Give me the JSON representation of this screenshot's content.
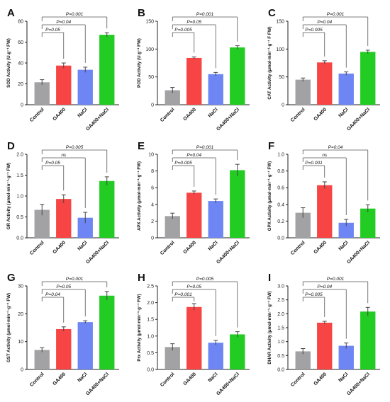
{
  "colors": {
    "Control": "#a2a2a4",
    "GA400": "#f74444",
    "NaCl": "#6e86f4",
    "GA400+NaCl": "#22cc22",
    "errorbar": "#444444",
    "axis": "#222222",
    "sig": "#555555"
  },
  "categories": [
    "Control",
    "GA400",
    "NaCl",
    "GA400+NaCl"
  ],
  "chart_data": [
    {
      "panel": "A",
      "type": "bar",
      "categories": [
        "Control",
        "GA400",
        "NaCl",
        "GA400+NaCl"
      ],
      "values": [
        21.5,
        37.5,
        33.5,
        67
      ],
      "errors": [
        2.5,
        2.5,
        2.5,
        2
      ],
      "ylabel": "SOD Activity (U.g⁻¹ FW)",
      "ylim": [
        0,
        80
      ],
      "yticks": [
        "0",
        "20",
        "40",
        "60",
        "80"
      ],
      "brackets": [
        {
          "to": 1,
          "label": "P=0.05"
        },
        {
          "to": 2,
          "label": "P=0.04"
        },
        {
          "to": 3,
          "label": "P=0.001"
        }
      ]
    },
    {
      "panel": "B",
      "type": "bar",
      "categories": [
        "Control",
        "GA400",
        "NaCl",
        "GA400+NaCl"
      ],
      "values": [
        26,
        84,
        55,
        103
      ],
      "errors": [
        5,
        2,
        3,
        3
      ],
      "ylabel": "POD Activity (U.g⁻¹ FW)",
      "ylim": [
        0,
        150
      ],
      "yticks": [
        "0",
        "50",
        "100",
        "150"
      ],
      "brackets": [
        {
          "to": 1,
          "label": "P=0.005"
        },
        {
          "to": 2,
          "label": "P=0.05"
        },
        {
          "to": 3,
          "label": "P=0.001"
        }
      ]
    },
    {
      "panel": "C",
      "type": "bar",
      "categories": [
        "Control",
        "GA400",
        "NaCl",
        "GA400+NaCl"
      ],
      "values": [
        45,
        76,
        56,
        95
      ],
      "errors": [
        3,
        3,
        3,
        3
      ],
      "ylabel": "CAT Activity (μmol·min⁻¹·g⁻¹ F FW)",
      "ylim": [
        0,
        150
      ],
      "yticks": [
        "0",
        "50",
        "100",
        "150"
      ],
      "brackets": [
        {
          "to": 1,
          "label": "P=0.005"
        },
        {
          "to": 2,
          "label": "P=0.04"
        },
        {
          "to": 3,
          "label": "P=0.001"
        }
      ]
    },
    {
      "panel": "D",
      "type": "bar",
      "categories": [
        "Control",
        "GA400",
        "NaCl",
        "GA400+NaCl"
      ],
      "values": [
        0.67,
        0.93,
        0.48,
        1.36
      ],
      "errors": [
        0.13,
        0.1,
        0.13,
        0.1
      ],
      "ylabel": "GR Activity (μmol·min⁻¹·g⁻¹ FW)",
      "ylim": [
        0,
        2.0
      ],
      "yticks": [
        "0.0",
        "0.5",
        "1.0",
        "1.5",
        "2.0"
      ],
      "brackets": [
        {
          "to": 1,
          "label": "P=0.05"
        },
        {
          "to": 2,
          "label": "ns"
        },
        {
          "to": 3,
          "label": "P=0.005"
        }
      ]
    },
    {
      "panel": "E",
      "type": "bar",
      "categories": [
        "Control",
        "GA400",
        "NaCl",
        "GA400+NaCl"
      ],
      "values": [
        2.6,
        5.4,
        4.4,
        8.1
      ],
      "errors": [
        0.35,
        0.2,
        0.25,
        0.7
      ],
      "ylabel": "APX Activity (μmol·min⁻¹·g⁻¹ FW)",
      "ylim": [
        0,
        10
      ],
      "yticks": [
        "0",
        "2",
        "4",
        "6",
        "8",
        "10"
      ],
      "brackets": [
        {
          "to": 1,
          "label": "P=0.005"
        },
        {
          "to": 2,
          "label": "P=0.04"
        },
        {
          "to": 3,
          "label": "P=0.001"
        }
      ]
    },
    {
      "panel": "F",
      "type": "bar",
      "categories": [
        "Control",
        "GA400",
        "NaCl",
        "GA400+NaCl"
      ],
      "values": [
        0.3,
        0.63,
        0.18,
        0.35
      ],
      "errors": [
        0.06,
        0.04,
        0.04,
        0.045
      ],
      "ylabel": "GPX Activity (μmol·min⁻¹·g⁻¹ FW)",
      "ylim": [
        0,
        1.0
      ],
      "yticks": [
        "0.0",
        "0.2",
        "0.4",
        "0.6",
        "0.8",
        "1.0"
      ],
      "brackets": [
        {
          "to": 1,
          "label": "P=0.001"
        },
        {
          "to": 2,
          "label": "ns"
        },
        {
          "to": 3,
          "label": "P=0.04"
        }
      ]
    },
    {
      "panel": "G",
      "type": "bar",
      "categories": [
        "Control",
        "GA400",
        "NaCl",
        "GA400+NaCl"
      ],
      "values": [
        7,
        14.5,
        17,
        26.5
      ],
      "errors": [
        0.8,
        0.8,
        0.5,
        1.5
      ],
      "ylabel": "GST Activity (μmol·min⁻¹·g⁻¹ FW)",
      "ylim": [
        0,
        30
      ],
      "yticks": [
        "0",
        "10",
        "20",
        "30"
      ],
      "brackets": [
        {
          "to": 1,
          "label": "P=0.04"
        },
        {
          "to": 2,
          "label": "P=0.05"
        },
        {
          "to": 3,
          "label": "P=0.001"
        }
      ]
    },
    {
      "panel": "H",
      "type": "bar",
      "categories": [
        "Control",
        "GA400",
        "NaCl",
        "GA400+NaCl"
      ],
      "values": [
        0.67,
        1.87,
        0.8,
        1.05
      ],
      "errors": [
        0.1,
        0.1,
        0.07,
        0.08
      ],
      "ylabel": "Prx Activity (μmol·min⁻¹·g⁻¹ FW)",
      "ylim": [
        0,
        2.5
      ],
      "yticks": [
        "0.0",
        "0.5",
        "1.0",
        "1.5",
        "2.0",
        "2.5"
      ],
      "brackets": [
        {
          "to": 1,
          "label": "P=0.001"
        },
        {
          "to": 2,
          "label": "P=0.05"
        },
        {
          "to": 3,
          "label": "P=0.005"
        }
      ]
    },
    {
      "panel": "I",
      "type": "bar",
      "categories": [
        "Control",
        "GA400",
        "NaCl",
        "GA400+NaCl"
      ],
      "values": [
        0.65,
        1.68,
        0.85,
        2.08
      ],
      "errors": [
        0.1,
        0.05,
        0.1,
        0.15
      ],
      "ylabel": "DHAR Activity (μmol·min⁻¹·g⁻¹ FW)",
      "ylim": [
        0,
        3.0
      ],
      "yticks": [
        "0.0",
        "0.5",
        "1.0",
        "1.5",
        "2.0",
        "2.5",
        "3.0"
      ],
      "brackets": [
        {
          "to": 1,
          "label": "P=0.005"
        },
        {
          "to": 2,
          "label": "P=0.04"
        },
        {
          "to": 3,
          "label": "P=0.001"
        }
      ]
    }
  ]
}
